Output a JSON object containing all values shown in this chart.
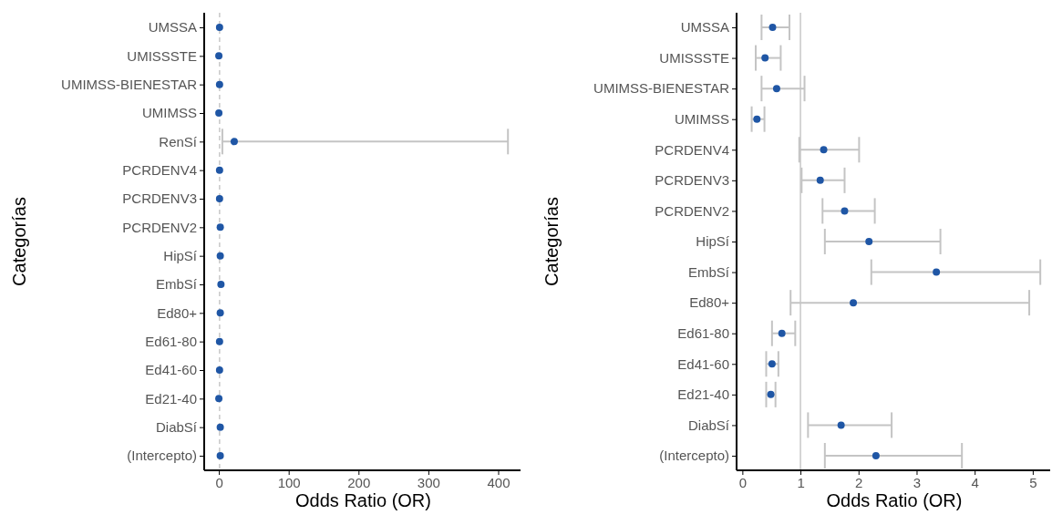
{
  "chart_data": [
    {
      "type": "scatter",
      "orientation": "horizontal",
      "xlabel": "Odds Ratio (OR)",
      "ylabel": "Categorías",
      "categories": [
        "UMSSA",
        "UMISSSTE",
        "UMIMSS-BIENESTAR",
        "UMIMSS",
        "RenSí",
        "PCRDENV4",
        "PCRDENV3",
        "PCRDENV2",
        "HipSí",
        "EmbSí",
        "Ed80+",
        "Ed61-80",
        "Ed41-60",
        "Ed21-40",
        "DiabSí",
        "(Intercepto)"
      ],
      "series": [
        {
          "color": "#1f56a5",
          "values": [
            1,
            0,
            1,
            0,
            22,
            1,
            1,
            2,
            2,
            3,
            2,
            1,
            1,
            0,
            2,
            2
          ],
          "errors": [
            null,
            null,
            null,
            null,
            [
              5,
              414
            ],
            null,
            null,
            null,
            null,
            null,
            null,
            null,
            null,
            null,
            null,
            null
          ]
        }
      ],
      "xlim": [
        -21,
        432
      ],
      "xticks": [
        0,
        100,
        200,
        300,
        400
      ],
      "marker": "circle",
      "ref_lines": [
        {
          "axis": "x",
          "value": 1,
          "color": "#c8c8c8",
          "line_style": "dashed"
        }
      ]
    },
    {
      "type": "scatter",
      "orientation": "horizontal",
      "xlabel": "Odds Ratio (OR)",
      "ylabel": "Categorías",
      "categories": [
        "UMSSA",
        "UMISSSTE",
        "UMIMSS-BIENESTAR",
        "UMIMSS",
        "PCRDENV4",
        "PCRDENV3",
        "PCRDENV2",
        "HipSí",
        "EmbSí",
        "Ed80+",
        "Ed61-80",
        "Ed41-60",
        "Ed21-40",
        "DiabSí",
        "(Intercepto)"
      ],
      "series": [
        {
          "color": "#1f56a5",
          "values": [
            0.52,
            0.39,
            0.59,
            0.25,
            1.4,
            1.34,
            1.76,
            2.18,
            3.34,
            1.91,
            0.68,
            0.51,
            0.49,
            1.7,
            2.3
          ],
          "errors": [
            [
              0.33,
              0.81
            ],
            [
              0.23,
              0.66
            ],
            [
              0.33,
              1.07
            ],
            [
              0.16,
              0.38
            ],
            [
              0.98,
              2.01
            ],
            [
              1.02,
              1.76
            ],
            [
              1.38,
              2.28
            ],
            [
              1.42,
              3.41
            ],
            [
              2.22,
              5.13
            ],
            [
              0.83,
              4.94
            ],
            [
              0.51,
              0.91
            ],
            [
              0.41,
              0.62
            ],
            [
              0.41,
              0.57
            ],
            [
              1.13,
              2.57
            ],
            [
              1.42,
              3.78
            ]
          ]
        }
      ],
      "xlim": [
        -0.1,
        5.3
      ],
      "xticks": [
        0,
        1,
        2,
        3,
        4,
        5
      ],
      "marker": "circle",
      "ref_lines": [
        {
          "axis": "x",
          "value": 1,
          "color": "#c8c8c8",
          "line_style": "solid"
        }
      ]
    }
  ]
}
